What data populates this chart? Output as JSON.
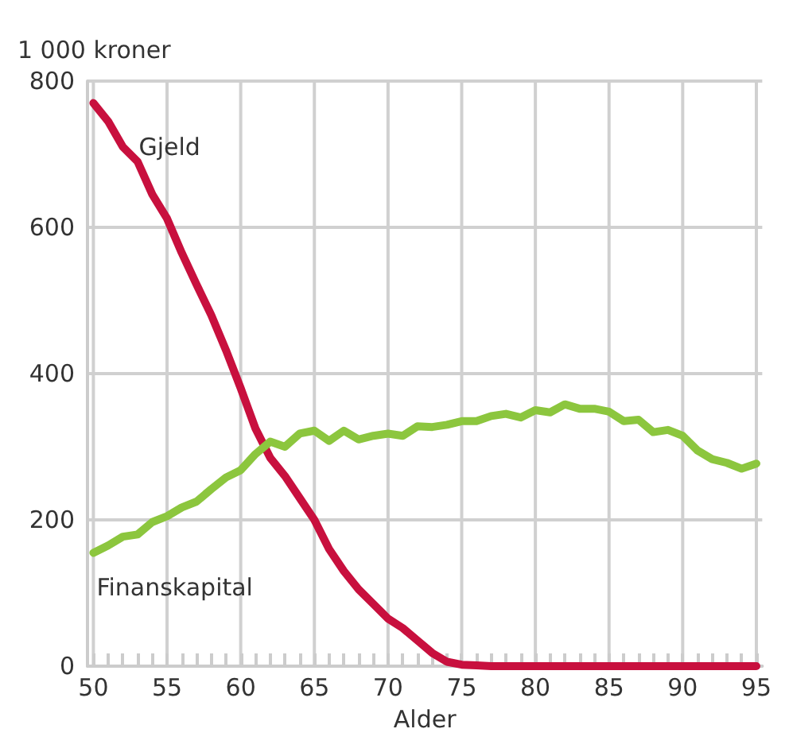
{
  "chart_data": {
    "type": "line",
    "ylabel": "1 000 kroner",
    "xlabel": "Alder",
    "x": [
      50,
      51,
      52,
      53,
      54,
      55,
      56,
      57,
      58,
      59,
      60,
      61,
      62,
      63,
      64,
      65,
      66,
      67,
      68,
      69,
      70,
      71,
      72,
      73,
      74,
      75,
      76,
      77,
      78,
      79,
      80,
      81,
      82,
      83,
      84,
      85,
      86,
      87,
      88,
      89,
      90,
      91,
      92,
      93,
      94,
      95
    ],
    "series": [
      {
        "name": "Gjeld",
        "color": "#c8103e",
        "values": [
          770,
          745,
          710,
          690,
          645,
          612,
          565,
          522,
          480,
          432,
          380,
          325,
          285,
          260,
          230,
          200,
          160,
          130,
          105,
          85,
          65,
          52,
          35,
          18,
          6,
          2,
          1,
          0,
          0,
          0,
          0,
          0,
          0,
          0,
          0,
          0,
          0,
          0,
          0,
          0,
          0,
          0,
          0,
          0,
          0,
          0
        ]
      },
      {
        "name": "Finanskapital",
        "color": "#8cc63e",
        "values": [
          155,
          165,
          177,
          180,
          197,
          205,
          217,
          225,
          242,
          258,
          268,
          290,
          307,
          300,
          318,
          322,
          308,
          322,
          310,
          315,
          318,
          315,
          328,
          327,
          330,
          335,
          335,
          342,
          345,
          340,
          350,
          347,
          358,
          352,
          352,
          348,
          335,
          337,
          320,
          323,
          315,
          295,
          283,
          278,
          270,
          277
        ]
      }
    ],
    "xlim": [
      49.6,
      95.4
    ],
    "xticks": [
      50,
      {
        "value": 51,
        "label": null
      },
      {
        "value": 52,
        "label": null
      },
      {
        "value": 53,
        "label": null
      },
      {
        "value": 54,
        "label": null
      },
      55,
      {
        "value": 56,
        "label": null
      },
      {
        "value": 57,
        "label": null
      },
      {
        "value": 58,
        "label": null
      },
      {
        "value": 59,
        "label": null
      },
      60,
      {
        "value": 61,
        "label": null
      },
      {
        "value": 62,
        "label": null
      },
      {
        "value": 63,
        "label": null
      },
      {
        "value": 64,
        "label": null
      },
      65,
      {
        "value": 66,
        "label": null
      },
      {
        "value": 67,
        "label": null
      },
      {
        "value": 68,
        "label": null
      },
      {
        "value": 69,
        "label": null
      },
      70,
      {
        "value": 71,
        "label": null
      },
      {
        "value": 72,
        "label": null
      },
      {
        "value": 73,
        "label": null
      },
      {
        "value": 74,
        "label": null
      },
      75,
      {
        "value": 76,
        "label": null
      },
      {
        "value": 77,
        "label": null
      },
      {
        "value": 78,
        "label": null
      },
      {
        "value": 79,
        "label": null
      },
      80,
      {
        "value": 81,
        "label": null
      },
      {
        "value": 82,
        "label": null
      },
      {
        "value": 83,
        "label": null
      },
      {
        "value": 84,
        "label": null
      },
      85,
      {
        "value": 86,
        "label": null
      },
      {
        "value": 87,
        "label": null
      },
      {
        "value": 88,
        "label": null
      },
      {
        "value": 89,
        "label": null
      },
      90,
      {
        "value": 91,
        "label": null
      },
      {
        "value": 92,
        "label": null
      },
      {
        "value": 93,
        "label": null
      },
      {
        "value": 94,
        "label": null
      },
      95
    ],
    "ylim": [
      0,
      800
    ],
    "yticks": [
      0,
      200,
      400,
      600,
      800
    ],
    "grid": true,
    "legend": false,
    "marker": "none",
    "line_style": "solid"
  }
}
